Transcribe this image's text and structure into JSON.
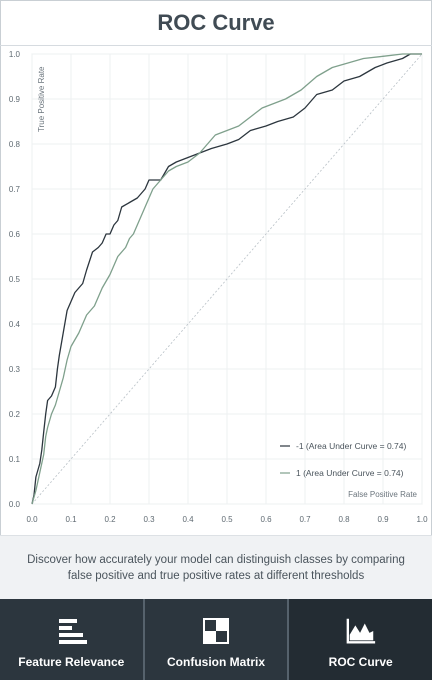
{
  "header": {
    "title": "ROC Curve"
  },
  "chart_data": {
    "type": "line",
    "xlabel": "False Positive Rate",
    "ylabel": "True Positive Rate",
    "xlim": [
      0.0,
      1.0
    ],
    "ylim": [
      0.0,
      1.0
    ],
    "xticks": [
      "0.0",
      "0.1",
      "0.2",
      "0.3",
      "0.4",
      "0.5",
      "0.6",
      "0.7",
      "0.8",
      "0.9",
      "1.0"
    ],
    "yticks": [
      "0.0",
      "0.1",
      "0.2",
      "0.3",
      "0.4",
      "0.5",
      "0.6",
      "0.7",
      "0.8",
      "0.9",
      "1.0"
    ],
    "grid": true,
    "legend_position": "bottom-right",
    "diagonal": true,
    "series": [
      {
        "name": "-1 (Area Under Curve = 0.74)",
        "color": "#2c363e",
        "points": [
          [
            0.0,
            0.0
          ],
          [
            0.005,
            0.02
          ],
          [
            0.01,
            0.06
          ],
          [
            0.02,
            0.09
          ],
          [
            0.025,
            0.12
          ],
          [
            0.03,
            0.16
          ],
          [
            0.035,
            0.2
          ],
          [
            0.04,
            0.23
          ],
          [
            0.05,
            0.24
          ],
          [
            0.06,
            0.26
          ],
          [
            0.065,
            0.3
          ],
          [
            0.07,
            0.33
          ],
          [
            0.08,
            0.38
          ],
          [
            0.09,
            0.43
          ],
          [
            0.1,
            0.45
          ],
          [
            0.11,
            0.47
          ],
          [
            0.12,
            0.48
          ],
          [
            0.13,
            0.49
          ],
          [
            0.14,
            0.52
          ],
          [
            0.155,
            0.56
          ],
          [
            0.17,
            0.57
          ],
          [
            0.18,
            0.58
          ],
          [
            0.19,
            0.6
          ],
          [
            0.2,
            0.6
          ],
          [
            0.21,
            0.62
          ],
          [
            0.22,
            0.63
          ],
          [
            0.23,
            0.66
          ],
          [
            0.25,
            0.67
          ],
          [
            0.27,
            0.68
          ],
          [
            0.29,
            0.7
          ],
          [
            0.3,
            0.72
          ],
          [
            0.33,
            0.72
          ],
          [
            0.35,
            0.75
          ],
          [
            0.37,
            0.76
          ],
          [
            0.4,
            0.77
          ],
          [
            0.43,
            0.78
          ],
          [
            0.46,
            0.79
          ],
          [
            0.5,
            0.8
          ],
          [
            0.53,
            0.81
          ],
          [
            0.56,
            0.83
          ],
          [
            0.6,
            0.84
          ],
          [
            0.63,
            0.85
          ],
          [
            0.67,
            0.86
          ],
          [
            0.7,
            0.88
          ],
          [
            0.73,
            0.91
          ],
          [
            0.77,
            0.92
          ],
          [
            0.8,
            0.94
          ],
          [
            0.84,
            0.95
          ],
          [
            0.88,
            0.97
          ],
          [
            0.91,
            0.98
          ],
          [
            0.95,
            0.99
          ],
          [
            0.97,
            1.0
          ],
          [
            1.0,
            1.0
          ]
        ]
      },
      {
        "name": "1 (Area Under Curve = 0.74)",
        "color": "#7fa08c",
        "points": [
          [
            0.0,
            0.0
          ],
          [
            0.01,
            0.03
          ],
          [
            0.02,
            0.07
          ],
          [
            0.03,
            0.11
          ],
          [
            0.035,
            0.15
          ],
          [
            0.04,
            0.17
          ],
          [
            0.05,
            0.2
          ],
          [
            0.06,
            0.22
          ],
          [
            0.07,
            0.25
          ],
          [
            0.08,
            0.28
          ],
          [
            0.09,
            0.32
          ],
          [
            0.1,
            0.35
          ],
          [
            0.12,
            0.38
          ],
          [
            0.14,
            0.42
          ],
          [
            0.16,
            0.44
          ],
          [
            0.18,
            0.48
          ],
          [
            0.2,
            0.51
          ],
          [
            0.22,
            0.55
          ],
          [
            0.24,
            0.57
          ],
          [
            0.25,
            0.59
          ],
          [
            0.26,
            0.6
          ],
          [
            0.27,
            0.62
          ],
          [
            0.28,
            0.64
          ],
          [
            0.29,
            0.66
          ],
          [
            0.3,
            0.68
          ],
          [
            0.31,
            0.7
          ],
          [
            0.33,
            0.72
          ],
          [
            0.35,
            0.74
          ],
          [
            0.37,
            0.75
          ],
          [
            0.4,
            0.76
          ],
          [
            0.43,
            0.78
          ],
          [
            0.45,
            0.8
          ],
          [
            0.47,
            0.82
          ],
          [
            0.5,
            0.83
          ],
          [
            0.53,
            0.84
          ],
          [
            0.56,
            0.86
          ],
          [
            0.59,
            0.88
          ],
          [
            0.62,
            0.89
          ],
          [
            0.65,
            0.9
          ],
          [
            0.69,
            0.92
          ],
          [
            0.73,
            0.95
          ],
          [
            0.77,
            0.97
          ],
          [
            0.81,
            0.98
          ],
          [
            0.85,
            0.99
          ],
          [
            0.9,
            0.995
          ],
          [
            0.95,
            1.0
          ],
          [
            1.0,
            1.0
          ]
        ]
      }
    ]
  },
  "description": {
    "text": "Discover how accurately your model can distinguish classes by comparing false positive and true positive rates at different thresholds"
  },
  "tabs": [
    {
      "label": "Feature Relevance",
      "icon": "feature-relevance-icon",
      "active": false
    },
    {
      "label": "Confusion Matrix",
      "icon": "confusion-matrix-icon",
      "active": false
    },
    {
      "label": "ROC Curve",
      "icon": "roc-curve-icon",
      "active": true
    }
  ],
  "colors": {
    "tabbar_background": "#2c363e",
    "tab_active_background": "#232c33",
    "series_negative": "#2c363e",
    "series_positive": "#7fa08c"
  }
}
